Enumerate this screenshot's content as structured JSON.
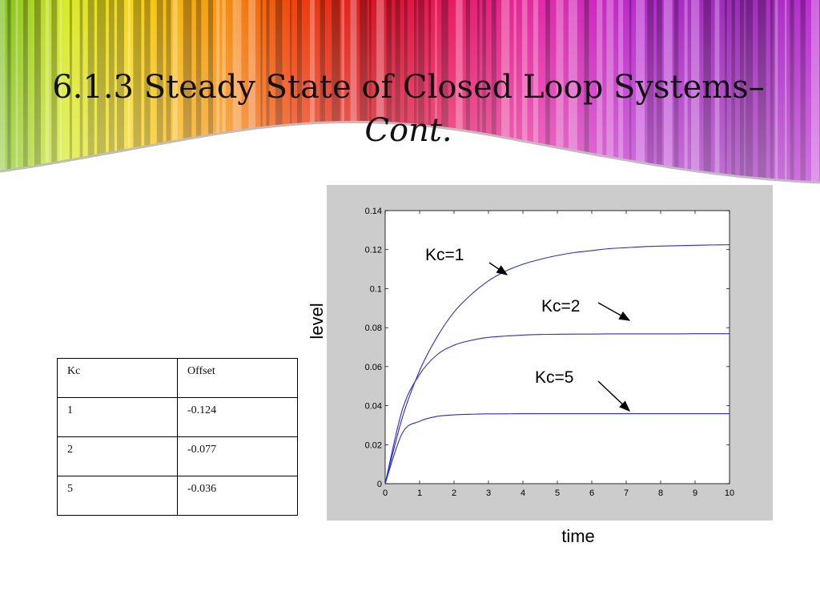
{
  "slide": {
    "title_line1": "6.1.3 Steady State of Closed Loop Systems–",
    "title_line2": "Cont."
  },
  "table": {
    "headers": [
      "Kc",
      "Offset"
    ],
    "rows": [
      [
        "1",
        "-0.124"
      ],
      [
        "2",
        "-0.077"
      ],
      [
        "5",
        "-0.036"
      ]
    ]
  },
  "colors": {
    "series": "#2a2ae0",
    "panel": "#cccccc"
  },
  "chart_data": {
    "type": "line",
    "xlabel": "time",
    "ylabel": "level",
    "xlim": [
      0,
      10
    ],
    "ylim": [
      0,
      0.14
    ],
    "xticks": [
      "0",
      "1",
      "2",
      "3",
      "4",
      "5",
      "6",
      "7",
      "8",
      "9",
      "10"
    ],
    "yticks": [
      "0",
      "0.02",
      "0.04",
      "0.06",
      "0.08",
      "0.1",
      "0.12",
      "0.14"
    ],
    "grid": false,
    "series": [
      {
        "name": "Kc=1",
        "x": [
          0,
          0.5,
          1,
          1.5,
          2,
          2.5,
          3,
          3.5,
          4,
          4.5,
          5,
          5.5,
          6,
          6.5,
          7,
          7.5,
          8,
          8.5,
          9,
          9.5,
          10
        ],
        "y": [
          0,
          0.034,
          0.058,
          0.075,
          0.088,
          0.097,
          0.104,
          0.109,
          0.1125,
          0.115,
          0.117,
          0.1185,
          0.1195,
          0.1205,
          0.121,
          0.1215,
          0.1218,
          0.122,
          0.1222,
          0.1224,
          0.1225
        ]
      },
      {
        "name": "Kc=2",
        "x": [
          0,
          0.5,
          1,
          1.5,
          2,
          2.5,
          3,
          3.5,
          4,
          4.5,
          5,
          5.5,
          6,
          6.5,
          7,
          7.5,
          8,
          8.5,
          9,
          9.5,
          10
        ],
        "y": [
          0,
          0.038,
          0.056,
          0.066,
          0.071,
          0.0735,
          0.075,
          0.0757,
          0.0762,
          0.0765,
          0.0766,
          0.0767,
          0.0767,
          0.0768,
          0.0768,
          0.0768,
          0.0768,
          0.0768,
          0.0769,
          0.0769,
          0.0769
        ]
      },
      {
        "name": "Kc=5",
        "x": [
          0,
          0.5,
          1,
          1.5,
          2,
          2.5,
          3,
          3.5,
          4,
          4.5,
          5,
          5.5,
          6,
          6.5,
          7,
          7.5,
          8,
          8.5,
          9,
          9.5,
          10
        ],
        "y": [
          0,
          0.026,
          0.032,
          0.0345,
          0.0353,
          0.0356,
          0.0358,
          0.0358,
          0.0359,
          0.0359,
          0.0359,
          0.0359,
          0.0359,
          0.0359,
          0.0359,
          0.0359,
          0.0359,
          0.0359,
          0.0359,
          0.0359,
          0.0359
        ]
      }
    ],
    "annotations": [
      "Kc=1",
      "Kc=2",
      "Kc=5"
    ]
  }
}
